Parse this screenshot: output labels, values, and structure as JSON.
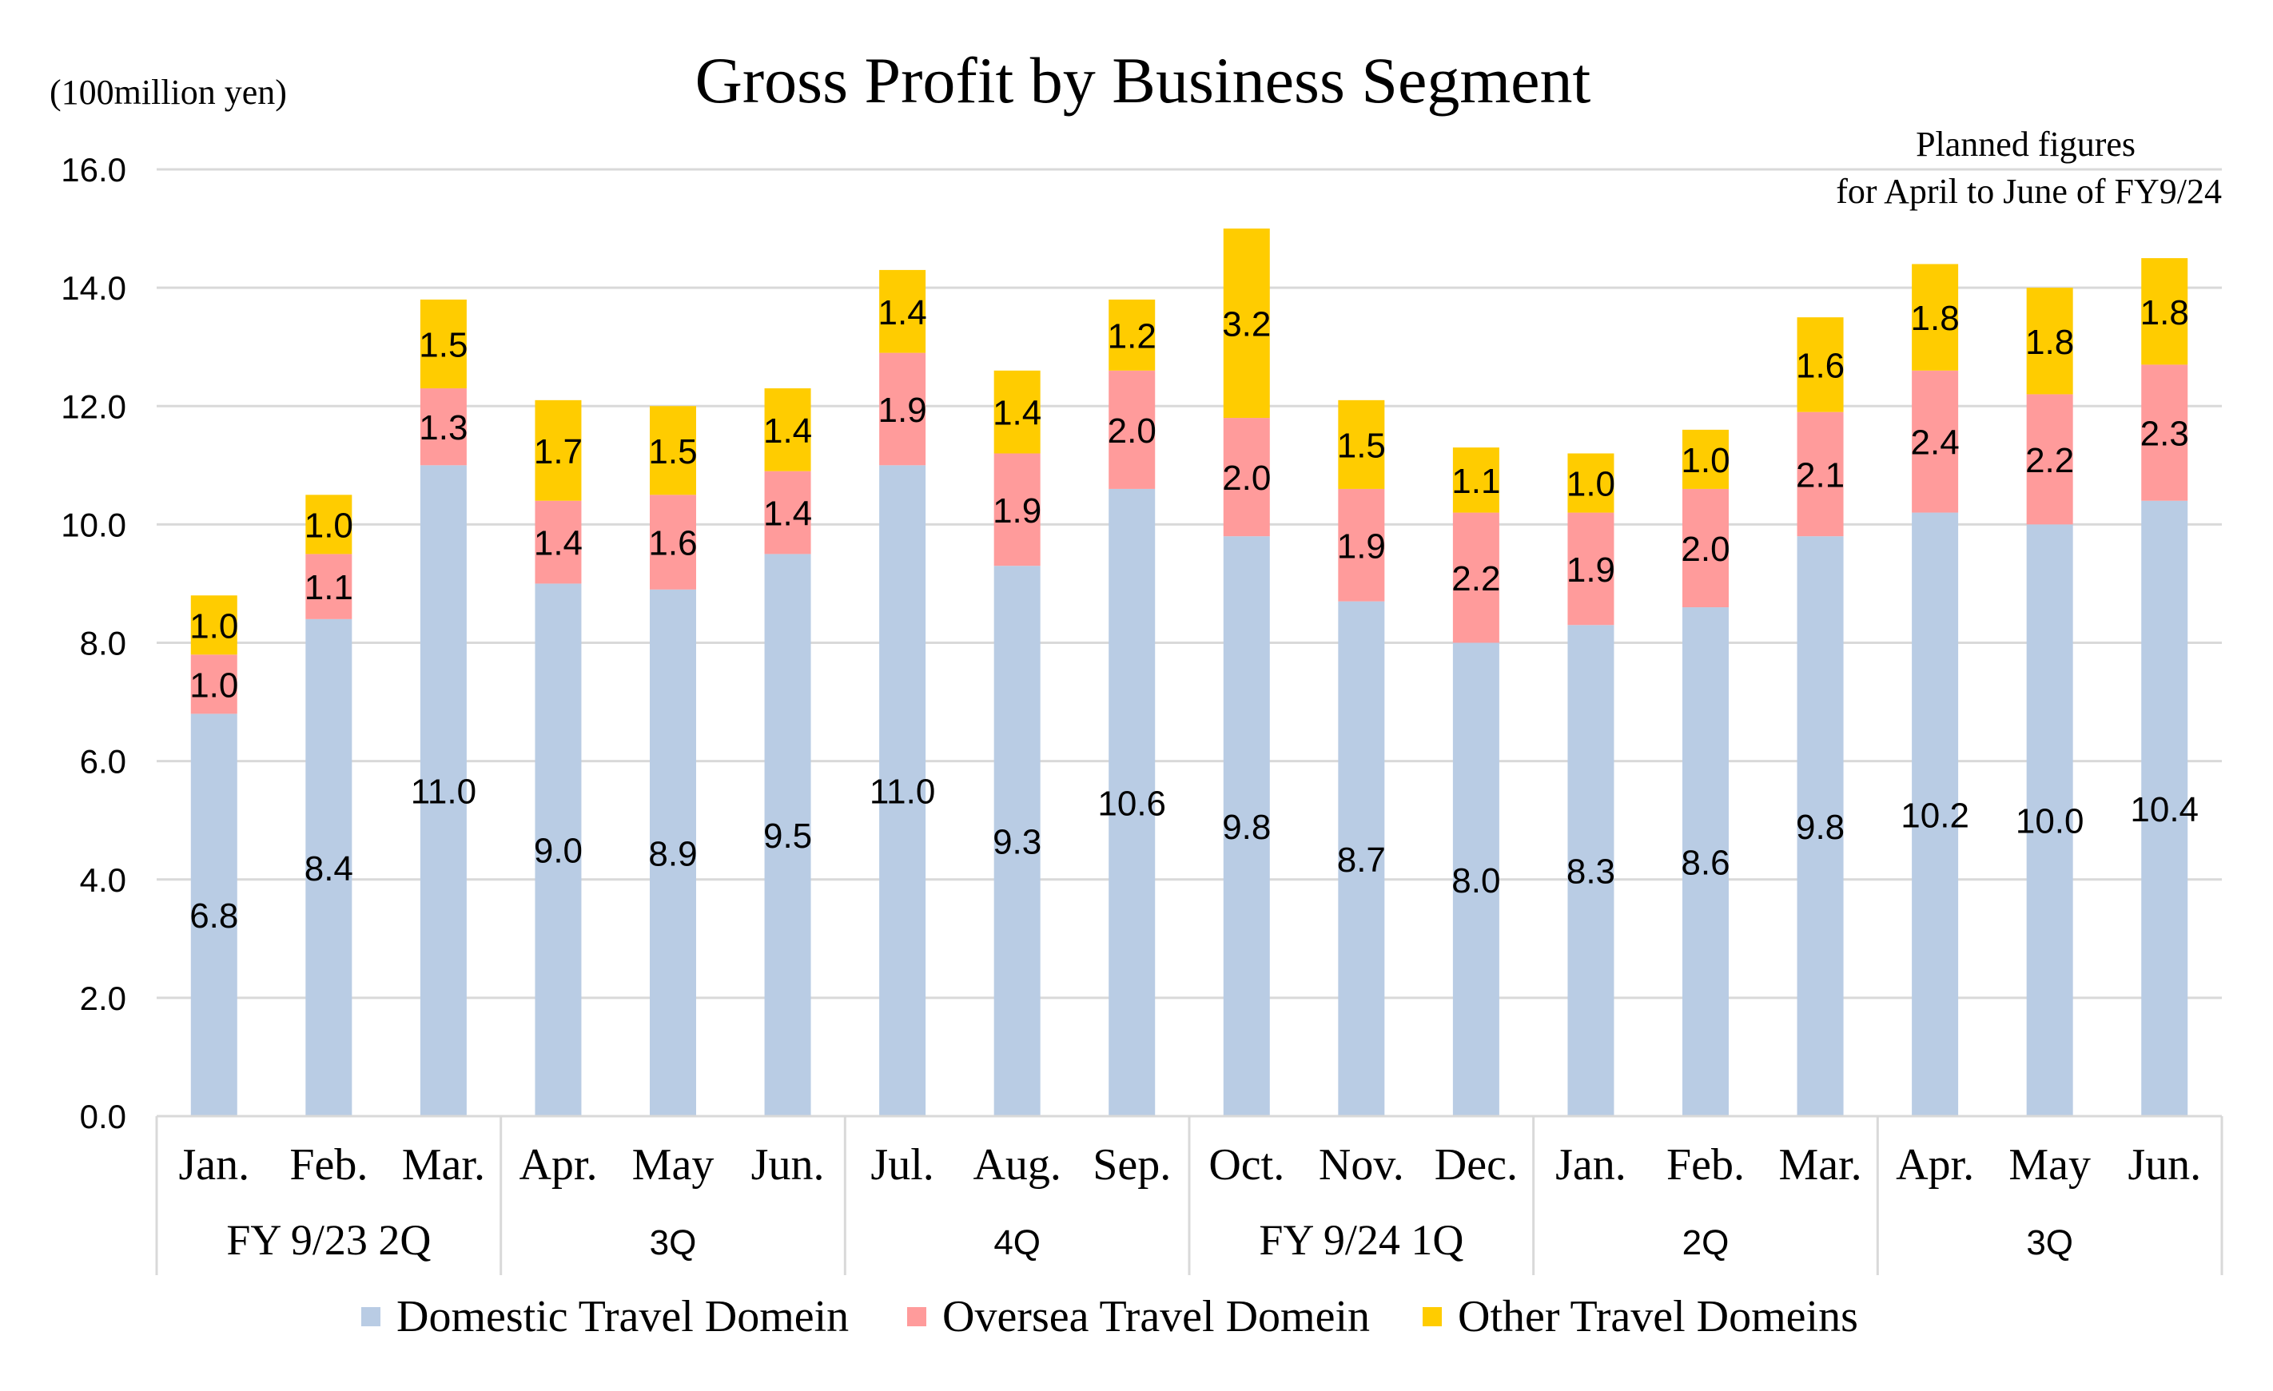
{
  "chart_data": {
    "type": "bar",
    "stacked": true,
    "title": "Gross Profit by Business Segment",
    "unit_label": "(100million yen)",
    "note_lines": [
      "Planned figures",
      "for April to June of FY9/24"
    ],
    "ylim": [
      0,
      16
    ],
    "yticks": [
      "0.0",
      "2.0",
      "4.0",
      "6.0",
      "8.0",
      "10.0",
      "12.0",
      "14.0",
      "16.0"
    ],
    "grid": true,
    "legend_position": "bottom",
    "categories": [
      "Jan.",
      "Feb.",
      "Mar.",
      "Apr.",
      "May",
      "Jun.",
      "Jul.",
      "Aug.",
      "Sep.",
      "Oct.",
      "Nov.",
      "Dec.",
      "Jan.",
      "Feb.",
      "Mar.",
      "Apr.",
      "May",
      "Jun."
    ],
    "groups": [
      {
        "label": "FY 9/23 2Q",
        "size": 3
      },
      {
        "label": "3Q",
        "size": 3
      },
      {
        "label": "4Q",
        "size": 3
      },
      {
        "label": "FY 9/24 1Q",
        "size": 3
      },
      {
        "label": "2Q",
        "size": 3
      },
      {
        "label": "3Q",
        "size": 3
      }
    ],
    "series": [
      {
        "name": "Domestic Travel Domein",
        "color": "#b9cce4",
        "values": [
          6.8,
          8.4,
          11.0,
          9.0,
          8.9,
          9.5,
          11.0,
          9.3,
          10.6,
          9.8,
          8.7,
          8.0,
          8.3,
          8.6,
          9.8,
          10.2,
          10.0,
          10.4
        ],
        "labels": [
          "6.8",
          "8.4",
          "11.0",
          "9.0",
          "8.9",
          "9.5",
          "11.0",
          "9.3",
          "10.6",
          "9.8",
          "8.7",
          "8.0",
          "8.3",
          "8.6",
          "9.8",
          "10.2",
          "10.0",
          "10.4"
        ]
      },
      {
        "name": "Oversea Travel Domein",
        "color": "#ff9b9b",
        "values": [
          1.0,
          1.1,
          1.3,
          1.4,
          1.6,
          1.4,
          1.9,
          1.9,
          2.0,
          2.0,
          1.9,
          2.2,
          1.9,
          2.0,
          2.1,
          2.4,
          2.2,
          2.3
        ],
        "labels": [
          "1.0",
          "1.1",
          "1.3",
          "1.4",
          "1.6",
          "1.4",
          "1.9",
          "1.9",
          "2.0",
          "2.0",
          "1.9",
          "2.2",
          "1.9",
          "2.0",
          "2.1",
          "2.4",
          "2.2",
          "2.3"
        ]
      },
      {
        "name": "Other Travel Domeins",
        "color": "#ffcc00",
        "values": [
          1.0,
          1.0,
          1.5,
          1.7,
          1.5,
          1.4,
          1.4,
          1.4,
          1.2,
          3.2,
          1.5,
          1.1,
          1.0,
          1.0,
          1.6,
          1.8,
          1.8,
          1.8
        ],
        "labels": [
          "1.0",
          "1.0",
          "1.5",
          "1.7",
          "1.5",
          "1.4",
          "1.4",
          "1.4",
          "1.2",
          "3.2",
          "1.5",
          "1.1",
          "1.0",
          "1.0",
          "1.6",
          "1.8",
          "1.8",
          "1.8"
        ]
      }
    ]
  }
}
